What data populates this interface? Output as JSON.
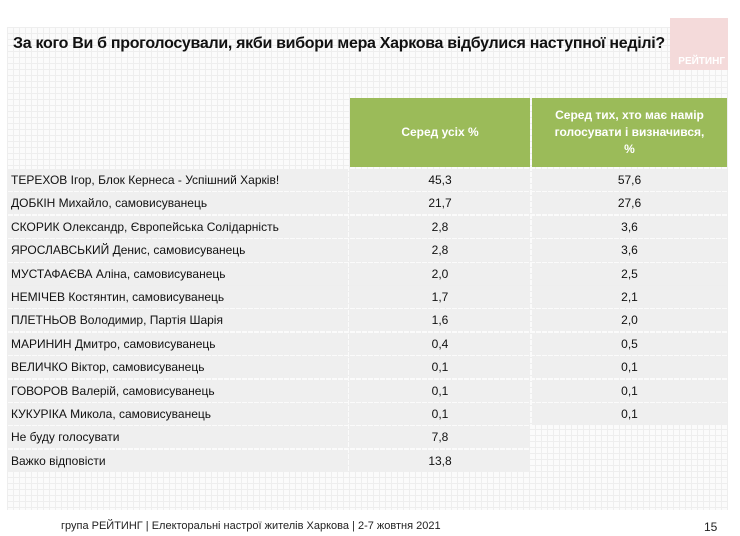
{
  "title": "За кого Ви б проголосували, якби вибори мера Харкова відбулися наступної неділі?",
  "logo_text": "РЕЙТИНГ",
  "colors": {
    "header": "#9bbb59",
    "row": "#efefef",
    "logo": "#f4dada"
  },
  "table": {
    "headers": [
      "Серед усіх %",
      "Серед тих, хто має намір голосувати і визначився, %"
    ],
    "rows": [
      {
        "name": "ТЕРЕХОВ Ігор, Блок Кернеса  - Успішний Харків!",
        "all": "45,3",
        "decided": "57,6"
      },
      {
        "name": "ДОБКІН Михайло, самовисуванець",
        "all": "21,7",
        "decided": "27,6"
      },
      {
        "name": "СКОРИК Олександр, Європейська Солідарність",
        "all": "2,8",
        "decided": "3,6"
      },
      {
        "name": "ЯРОСЛАВСЬКИЙ Денис, самовисуванець",
        "all": "2,8",
        "decided": "3,6"
      },
      {
        "name": "МУСТАФАЄВА Аліна, самовисуванець",
        "all": "2,0",
        "decided": "2,5"
      },
      {
        "name": "НЕМІЧЕВ Костянтин, самовисуванець",
        "all": "1,7",
        "decided": "2,1"
      },
      {
        "name": "ПЛЕТНЬОВ Володимир, Партія Шарія",
        "all": "1,6",
        "decided": "2,0"
      },
      {
        "name": "МАРИНИН Дмитро, самовисуванець",
        "all": "0,4",
        "decided": "0,5"
      },
      {
        "name": "ВЕЛИЧКО Віктор, самовисуванець",
        "all": "0,1",
        "decided": "0,1"
      },
      {
        "name": "ГОВОРОВ Валерій, самовисуванець",
        "all": "0,1",
        "decided": "0,1"
      },
      {
        "name": "КУКУРІКА Микола, самовисуванець",
        "all": "0,1",
        "decided": "0,1"
      },
      {
        "name": "Не буду голосувати",
        "all": "7,8"
      },
      {
        "name": "Важко відповісти",
        "all": "13,8"
      }
    ]
  },
  "footer": "група РЕЙТИНГ  | Електоральні настрої жителів Харкова | 2-7 жовтня 2021",
  "page_number": "15"
}
